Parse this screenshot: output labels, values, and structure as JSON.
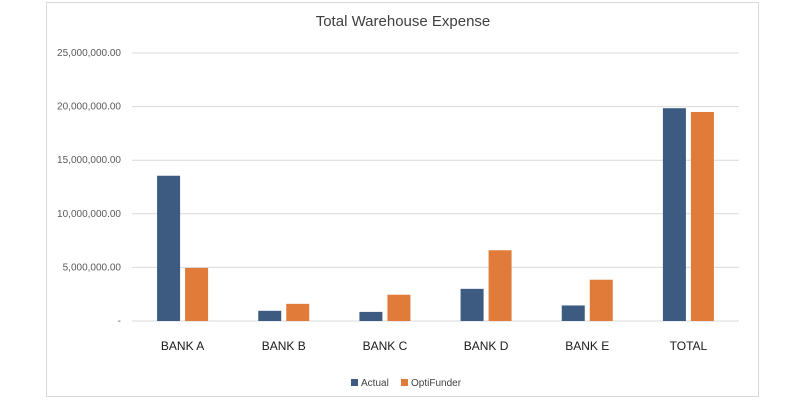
{
  "chart_data": {
    "type": "bar",
    "title": "Total Warehouse Expense",
    "xlabel": "",
    "ylabel": "",
    "categories": [
      "BANK A",
      "BANK B",
      "BANK C",
      "BANK D",
      "BANK E",
      "TOTAL"
    ],
    "series": [
      {
        "name": "Actual",
        "color": "#3d5a80",
        "values": [
          13550000,
          950000,
          850000,
          3000000,
          1450000,
          19850000
        ]
      },
      {
        "name": "OptiFunder",
        "color": "#e07b39",
        "values": [
          4950000,
          1600000,
          2450000,
          6600000,
          3850000,
          19500000
        ]
      }
    ],
    "ylim": [
      0,
      25000000
    ],
    "yticks": [
      0,
      5000000,
      10000000,
      15000000,
      20000000,
      25000000
    ],
    "ytick_labels": [
      "-",
      "5,000,000.00",
      "10,000,000.00",
      "15,000,000.00",
      "20,000,000.00",
      "25,000,000.00"
    ],
    "grid": true,
    "legend_position": "bottom"
  }
}
